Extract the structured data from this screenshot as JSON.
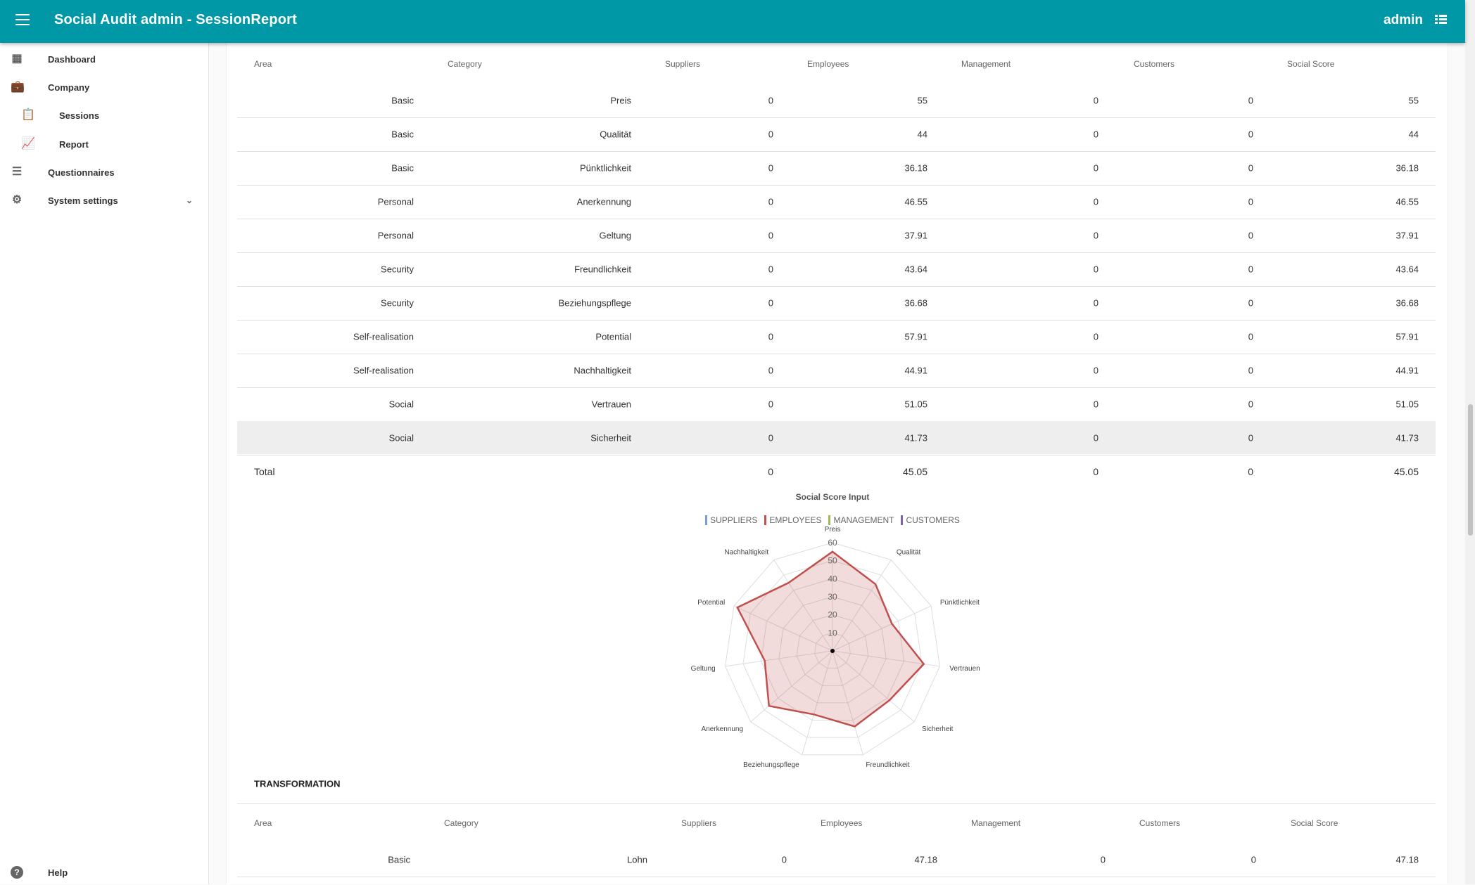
{
  "header": {
    "title": "Social Audit admin - SessionReport",
    "user": "admin",
    "menu_icon": "hamburger-icon",
    "user_menu_icon": "list-icon"
  },
  "sidebar": {
    "items": [
      {
        "label": "Dashboard",
        "icon": "dashboard-icon"
      },
      {
        "label": "Company",
        "icon": "briefcase-icon"
      },
      {
        "label": "Sessions",
        "icon": "clipboard-icon"
      },
      {
        "label": "Report",
        "icon": "report-chart-icon"
      },
      {
        "label": "Questionnaires",
        "icon": "checklist-icon"
      },
      {
        "label": "System settings",
        "icon": "gear-icon"
      }
    ],
    "help": "Help"
  },
  "table1": {
    "columns": [
      "Area",
      "Category",
      "Suppliers",
      "Employees",
      "Management",
      "Customers",
      "Social Score"
    ],
    "rows": [
      [
        "Basic",
        "Preis",
        "0",
        "55",
        "0",
        "0",
        "55"
      ],
      [
        "Basic",
        "Qualität",
        "0",
        "44",
        "0",
        "0",
        "44"
      ],
      [
        "Basic",
        "Pünktlichkeit",
        "0",
        "36.18",
        "0",
        "0",
        "36.18"
      ],
      [
        "Personal",
        "Anerkennung",
        "0",
        "46.55",
        "0",
        "0",
        "46.55"
      ],
      [
        "Personal",
        "Geltung",
        "0",
        "37.91",
        "0",
        "0",
        "37.91"
      ],
      [
        "Security",
        "Freundlichkeit",
        "0",
        "43.64",
        "0",
        "0",
        "43.64"
      ],
      [
        "Security",
        "Beziehungspflege",
        "0",
        "36.68",
        "0",
        "0",
        "36.68"
      ],
      [
        "Self-realisation",
        "Potential",
        "0",
        "57.91",
        "0",
        "0",
        "57.91"
      ],
      [
        "Self-realisation",
        "Nachhaltigkeit",
        "0",
        "44.91",
        "0",
        "0",
        "44.91"
      ],
      [
        "Social",
        "Vertrauen",
        "0",
        "51.05",
        "0",
        "0",
        "51.05"
      ],
      [
        "Social",
        "Sicherheit",
        "0",
        "41.73",
        "0",
        "0",
        "41.73"
      ]
    ],
    "total": {
      "label": "Total",
      "values": [
        "0",
        "45.05",
        "0",
        "0",
        "45.05"
      ]
    }
  },
  "chart_data": {
    "type": "radar",
    "title": "Social Score Input",
    "categories": [
      "Preis",
      "Qualität",
      "Pünktlichkeit",
      "Vertrauen",
      "Sicherheit",
      "Freundlichkeit",
      "Beziehungspflege",
      "Anerkennung",
      "Geltung",
      "Potential",
      "Nachhaltigkeit"
    ],
    "series": [
      {
        "name": "SUPPLIERS",
        "color": "#7b9fd4",
        "values": [
          0,
          0,
          0,
          0,
          0,
          0,
          0,
          0,
          0,
          0,
          0
        ]
      },
      {
        "name": "EMPLOYEES",
        "color": "#c0504d",
        "values": [
          55,
          44,
          36.18,
          51.05,
          41.73,
          43.64,
          36.68,
          46.55,
          37.91,
          57.91,
          44.91
        ]
      },
      {
        "name": "MANAGEMENT",
        "color": "#9bbb59",
        "values": [
          0,
          0,
          0,
          0,
          0,
          0,
          0,
          0,
          0,
          0,
          0
        ]
      },
      {
        "name": "CUSTOMERS",
        "color": "#8064a2",
        "values": [
          0,
          0,
          0,
          0,
          0,
          0,
          0,
          0,
          0,
          0,
          0
        ]
      }
    ],
    "ticks": [
      "10",
      "20",
      "30",
      "40",
      "50",
      "60"
    ],
    "rlim": [
      0,
      60
    ],
    "legend": "top"
  },
  "section2": {
    "title": "TRANSFORMATION"
  },
  "table2": {
    "columns": [
      "Area",
      "Category",
      "Suppliers",
      "Employees",
      "Management",
      "Customers",
      "Social Score"
    ],
    "rows": [
      [
        "Basic",
        "Lohn",
        "0",
        "47.18",
        "0",
        "0",
        "47.18"
      ]
    ]
  }
}
